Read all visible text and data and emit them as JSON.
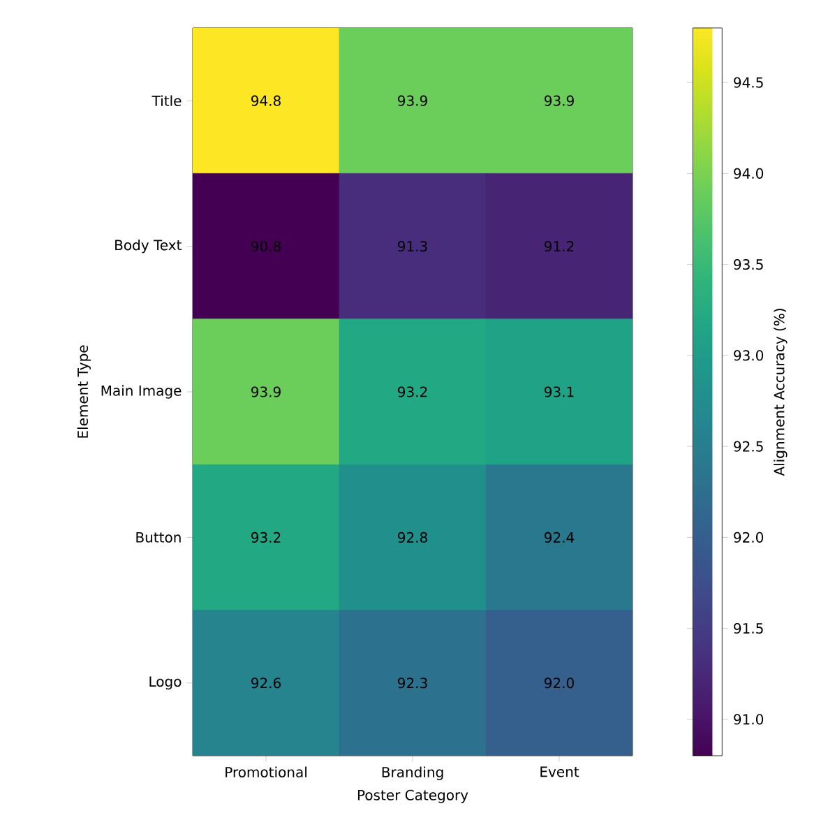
{
  "chart_data": {
    "type": "heatmap",
    "xlabel": "Poster Category",
    "ylabel": "Element Type",
    "clabel": "Alignment Accuracy (%)",
    "categories": [
      "Promotional",
      "Branding",
      "Event"
    ],
    "y_categories": [
      "Title",
      "Body Text",
      "Main Image",
      "Button",
      "Logo"
    ],
    "cells": [
      [
        94.8,
        93.9,
        93.9
      ],
      [
        90.8,
        91.3,
        91.2
      ],
      [
        93.9,
        93.2,
        93.1
      ],
      [
        93.2,
        92.8,
        92.4
      ],
      [
        92.6,
        92.3,
        92.0
      ]
    ],
    "cell_labels": [
      [
        "94.8",
        "93.9",
        "93.9"
      ],
      [
        "90.8",
        "91.3",
        "91.2"
      ],
      [
        "93.9",
        "93.2",
        "93.1"
      ],
      [
        "93.2",
        "92.8",
        "92.4"
      ],
      [
        "92.6",
        "92.3",
        "92.0"
      ]
    ],
    "clim": [
      90.8,
      94.8
    ],
    "cticks": [
      {
        "value": 91.0,
        "label": "91.0"
      },
      91.5,
      {
        "value": 92.0,
        "label": "92.0"
      },
      92.5,
      {
        "value": 93.0,
        "label": "93.0"
      },
      93.5,
      {
        "value": 94.0,
        "label": "94.0"
      },
      94.5
    ]
  }
}
